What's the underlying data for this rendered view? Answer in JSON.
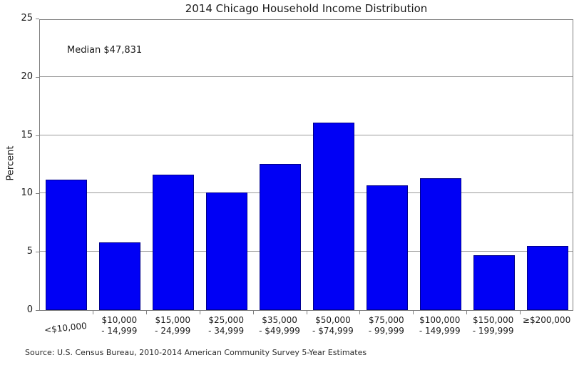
{
  "colors": {
    "bar_fill": "#0000f5",
    "bar_edge": "#00008b",
    "grid": "#9a9a9a",
    "spine": "#7f7f7f",
    "text": "#1a1a1a"
  },
  "chart_data": {
    "type": "bar",
    "title": "2014 Chicago Household Income Distribution",
    "ylabel": "Percent",
    "xlabel": "",
    "annotation": "Median $47,831",
    "source": "Source: U.S. Census Bureau, 2010-2014 American Community Survey 5-Year Estimates",
    "categories": [
      "<$10,000",
      "$10,000\n- 14,999",
      "$15,000\n- 24,999",
      "$25,000\n- 34,999",
      "$35,000\n- $49,999",
      "$50,000\n- $74,999",
      "$75,000\n- 99,999",
      "$100,000\n- 149,999",
      "$150,000\n- 199,999",
      "≥$200,000"
    ],
    "values": [
      11.2,
      5.8,
      11.6,
      10.1,
      12.5,
      16.1,
      10.7,
      11.3,
      4.7,
      5.5
    ],
    "yticks": [
      0,
      5,
      10,
      15,
      20,
      25
    ],
    "ylim": [
      0,
      25
    ],
    "grid": "horizontal",
    "legend": "none"
  }
}
